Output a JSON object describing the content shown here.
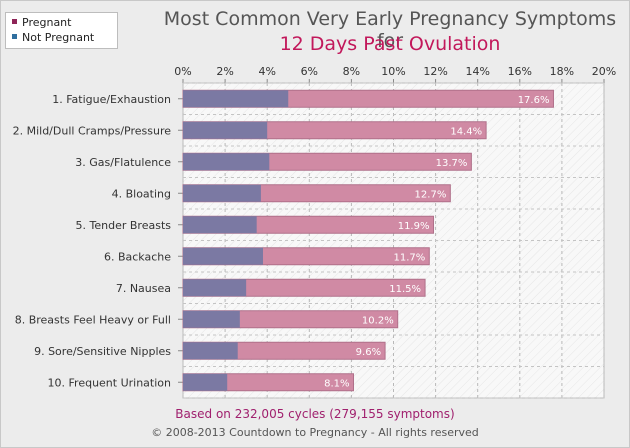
{
  "title_line1": "Most Common Very Early Pregnancy Symptoms for",
  "title_line2": "12 Days Past Ovulation",
  "legend": [
    {
      "label": "Pregnant",
      "color": "#8e2457"
    },
    {
      "label": "Not Pregnant",
      "color": "#2f6f9f"
    }
  ],
  "footer_note": "Based on 232,005 cycles (279,155 symptoms)",
  "copyright": "© 2008-2013 Countdown to Pregnancy - All rights reserved",
  "colors": {
    "pregnant_bar": "#d08aa4",
    "not_pregnant_bar": "#7b79a3",
    "title_accent": "#c2185b",
    "plot_background": "#f8f8f8"
  },
  "chart_data": {
    "type": "bar",
    "orientation": "horizontal",
    "categories": [
      "1. Fatigue/Exhaustion",
      "2. Mild/Dull Cramps/Pressure",
      "3. Gas/Flatulence",
      "4. Bloating",
      "5. Tender Breasts",
      "6. Backache",
      "7. Nausea",
      "8. Breasts Feel Heavy or Full",
      "9. Sore/Sensitive Nipples",
      "10. Frequent Urination"
    ],
    "series": [
      {
        "name": "Pregnant",
        "values": [
          17.6,
          14.4,
          13.7,
          12.7,
          11.9,
          11.7,
          11.5,
          10.2,
          9.6,
          8.1
        ]
      },
      {
        "name": "Not Pregnant",
        "values": [
          5.0,
          4.0,
          4.1,
          3.7,
          3.5,
          3.8,
          3.0,
          2.7,
          2.6,
          2.1
        ]
      }
    ],
    "data_labels": [
      "17.6%",
      "14.4%",
      "13.7%",
      "12.7%",
      "11.9%",
      "11.7%",
      "11.5%",
      "10.2%",
      "9.6%",
      "8.1%"
    ],
    "x_ticks": [
      "0%",
      "2%",
      "4%",
      "6%",
      "8%",
      "10%",
      "12%",
      "14%",
      "16%",
      "18%",
      "20%"
    ],
    "xlim": [
      0,
      20
    ],
    "grid": true,
    "legend_position": "top-left"
  }
}
